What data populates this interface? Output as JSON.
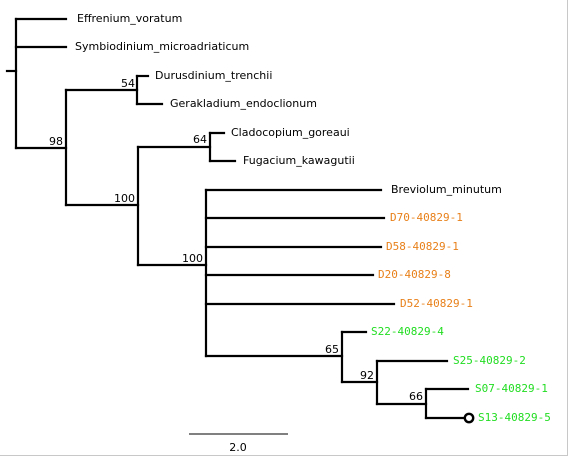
{
  "colors": {
    "reference": "#000000",
    "orange": "#e8801a",
    "green": "#22dd22"
  },
  "taxa": {
    "effrenium": "Effrenium_voratum",
    "symbiodinium": "Symbiodinium_microadriaticum",
    "durusdinium": "Durusdinium_trenchii",
    "gerakladium": "Gerakladium_endoclionum",
    "cladocopium": "Cladocopium_goreaui",
    "fugacium": "Fugacium_kawagutii",
    "breviolum": "Breviolum_minutum",
    "d70": "D70-40829-1",
    "d58": "D58-40829-1",
    "d20": "D20-40829-8",
    "d52": "D52-40829-1",
    "s22": "S22-40829-4",
    "s25": "S25-40829-2",
    "s07": "S07-40829-1",
    "s13": "S13-40829-5"
  },
  "support": {
    "durus_gerak": "54",
    "main_clade": "98",
    "clado_fug": "64",
    "cladocopium_breviolum_clade": "100",
    "breviolum_clade": "100",
    "s_clade": "65",
    "s_subclade": "92",
    "s07_s13": "66"
  },
  "scale_bar": {
    "label": "2.0"
  },
  "selected_tip": "S13-40829-5"
}
